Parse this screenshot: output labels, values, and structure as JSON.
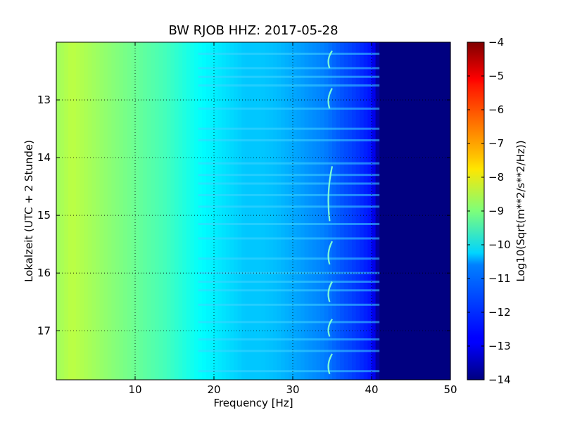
{
  "chart_data": {
    "type": "heatmap",
    "title": "BW RJOB HHZ: 2017-05-28",
    "xlabel": "Frequency [Hz]",
    "ylabel": "Lokalzeit (UTC + 2 Stunde)",
    "xlim": [
      0,
      50
    ],
    "ylim": [
      12.0,
      17.85
    ],
    "y_inverted": true,
    "x_ticks": [
      "10",
      "20",
      "30",
      "40",
      "50"
    ],
    "x_tick_values": [
      10,
      20,
      30,
      40,
      50
    ],
    "y_ticks": [
      "13",
      "14",
      "15",
      "16",
      "17"
    ],
    "y_tick_values": [
      13,
      14,
      15,
      16,
      17
    ],
    "grid": true,
    "colorbar": {
      "label": "Log10(Sqrt(m**2/s**2/Hz))",
      "range": [
        -14,
        -4
      ],
      "ticks": [
        "−4",
        "−5",
        "−6",
        "−7",
        "−8",
        "−9",
        "−10",
        "−11",
        "−12",
        "−13",
        "−14"
      ],
      "tick_values": [
        -4,
        -5,
        -6,
        -7,
        -8,
        -9,
        -10,
        -11,
        -12,
        -13,
        -14
      ],
      "colormap": "jet"
    },
    "spectral_profile": {
      "frequency_hz": [
        0,
        2,
        4,
        6,
        8,
        10,
        12,
        14,
        16,
        18,
        20,
        22,
        24,
        26,
        28,
        30,
        32,
        34,
        36,
        38,
        40,
        41,
        50
      ],
      "log_amplitude": [
        -8.7,
        -8.4,
        -8.6,
        -8.8,
        -9.0,
        -9.2,
        -9.4,
        -9.6,
        -9.9,
        -10.2,
        -10.4,
        -10.6,
        -10.8,
        -10.8,
        -10.9,
        -11.1,
        -11.3,
        -11.5,
        -11.9,
        -12.2,
        -12.6,
        -14.0,
        -14.0
      ]
    },
    "horizontal_bands_hours": [
      12.2,
      12.45,
      12.6,
      12.75,
      13.15,
      13.5,
      13.7,
      14.1,
      14.3,
      14.45,
      14.65,
      14.85,
      15.15,
      15.4,
      15.75,
      16.0,
      16.15,
      16.3,
      16.55,
      16.85,
      17.15,
      17.35,
      17.7
    ],
    "tonal_line": {
      "frequency_hz": 34.5,
      "segments_hours": [
        [
          12.15,
          12.45
        ],
        [
          12.8,
          13.15
        ],
        [
          14.15,
          15.1
        ],
        [
          15.45,
          15.85
        ],
        [
          16.15,
          16.5
        ],
        [
          16.8,
          17.1
        ],
        [
          17.4,
          17.75
        ]
      ]
    }
  }
}
